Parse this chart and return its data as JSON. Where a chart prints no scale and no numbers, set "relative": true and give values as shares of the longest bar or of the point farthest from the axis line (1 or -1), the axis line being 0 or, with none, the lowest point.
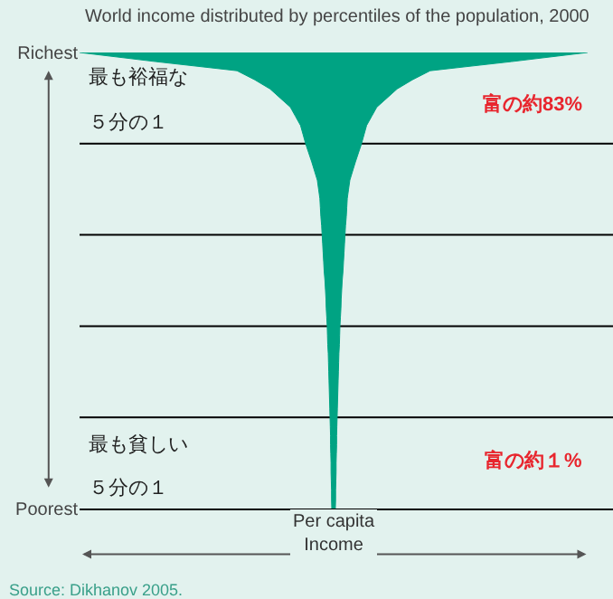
{
  "chart_data": {
    "type": "area",
    "orientation": "horizontal",
    "relative": true,
    "title": "World income distributed by percentiles of the population, 2000",
    "xlabel": "Per capita\nIncome",
    "categories": [
      "Richest",
      null,
      null,
      null,
      null,
      null,
      null,
      null,
      null,
      null,
      null,
      null,
      null,
      null,
      null,
      null,
      null,
      null,
      null,
      null,
      null,
      null,
      null,
      null,
      null,
      null,
      null,
      null,
      null,
      null,
      null,
      null,
      null,
      null,
      null,
      null,
      null,
      null,
      null,
      null,
      null,
      null,
      null,
      null,
      null,
      null,
      null,
      null,
      null,
      null,
      "Poorest"
    ],
    "values": [
      1.0,
      0.7,
      0.38,
      0.31,
      0.25,
      0.21,
      0.17,
      0.15,
      0.13,
      0.12,
      0.11,
      0.098,
      0.086,
      0.075,
      0.064,
      0.059,
      0.054,
      0.052,
      0.05,
      0.047,
      0.045,
      0.043,
      0.041,
      0.039,
      0.037,
      0.034,
      0.032,
      0.03,
      0.029,
      0.027,
      0.025,
      0.024,
      0.023,
      0.021,
      0.02,
      0.019,
      0.018,
      0.017,
      0.016,
      0.015,
      0.014,
      0.013,
      0.012,
      0.012,
      0.011,
      0.01,
      0.01,
      0.009,
      0.008,
      0.008,
      0.007
    ],
    "color": "#00a383",
    "annotations": [
      "最も裕福な",
      "５分の１",
      "富の約83%",
      "最も貧しい",
      "５分の１",
      "富の約１%",
      "Source: Dikhanov 2005."
    ],
    "grid": false
  }
}
